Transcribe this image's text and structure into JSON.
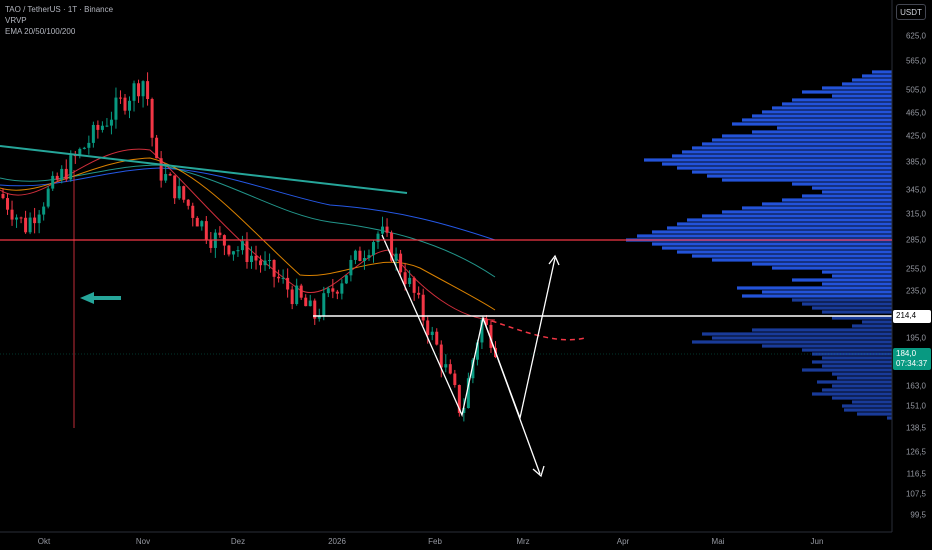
{
  "header": {
    "symbol_line": "TAO / TetherUS · 1T · Binance",
    "indicator_1": "VRVP",
    "indicator_2": "EMA 20/50/100/200"
  },
  "currency_button": "USDT",
  "price_axis": {
    "ticks": [
      "625,0",
      "565,0",
      "505,0",
      "465,0",
      "425,0",
      "385,0",
      "345,0",
      "315,0",
      "285,0",
      "255,0",
      "235,0",
      "195,0",
      "163,0",
      "151,0",
      "138,5",
      "126,5",
      "116,5",
      "107,5",
      "99,5"
    ],
    "level_label": "214,4",
    "current_price": "184,0",
    "countdown": "07:34:37"
  },
  "time_axis": {
    "labels": [
      "Okt",
      "Nov",
      "Dez",
      "2026",
      "Feb",
      "Mrz",
      "Apr",
      "Mai",
      "Jun"
    ]
  },
  "colors": {
    "background": "#000000",
    "up_candle": "#089981",
    "down_candle": "#f23645",
    "horizontal_red": "#f23645",
    "trendline": "#26a69a",
    "volume_profile": "#2962ff",
    "ema20": "#f23645",
    "ema50": "#ff9800",
    "ema100": "#26a69a",
    "ema200": "#2962ff"
  },
  "chart_data": {
    "type": "candlestick",
    "symbol": "TAO / TetherUS",
    "interval": "1T",
    "exchange": "Binance",
    "x_range": [
      "Okt",
      "Jun"
    ],
    "y_range": [
      99.5,
      625.0
    ],
    "horizontal_levels": [
      285.0,
      214.4
    ],
    "current_price": 184.0,
    "approx_path": [
      {
        "t": "Okt",
        "price": 340
      },
      {
        "t": "Okt",
        "price": 300
      },
      {
        "t": "Okt",
        "price": 390
      },
      {
        "t": "Nov",
        "price": 530
      },
      {
        "t": "Nov",
        "price": 380
      },
      {
        "t": "Dez",
        "price": 290
      },
      {
        "t": "Dez",
        "price": 270
      },
      {
        "t": "Dez",
        "price": 214
      },
      {
        "t": "2026",
        "price": 295
      },
      {
        "t": "2026",
        "price": 240
      },
      {
        "t": "Feb",
        "price": 200
      },
      {
        "t": "Feb",
        "price": 146
      },
      {
        "t": "Feb",
        "price": 210
      },
      {
        "t": "Feb",
        "price": 184
      }
    ]
  }
}
